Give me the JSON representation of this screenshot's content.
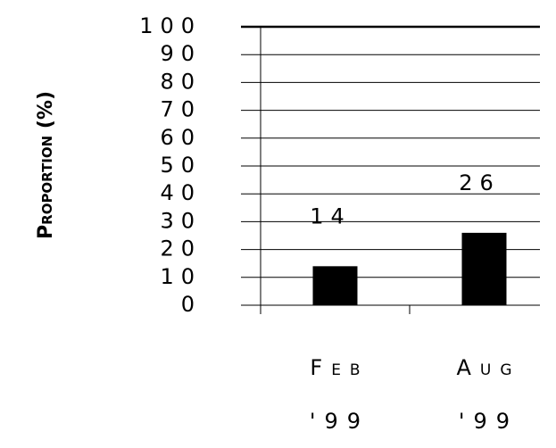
{
  "chart_data": {
    "type": "bar",
    "y_label": "Proportion (%)",
    "categories": [
      "Feb '99",
      "Aug '99"
    ],
    "values": [
      14,
      26
    ],
    "color": "#000000",
    "ylim": [
      0,
      100
    ],
    "yticks": [
      0,
      10,
      20,
      30,
      40,
      50,
      60,
      70,
      80,
      90,
      100
    ],
    "grid": true
  }
}
